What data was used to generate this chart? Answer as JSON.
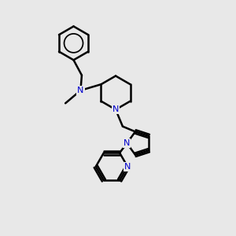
{
  "background_color": "#e8e8e8",
  "bond_color": "#000000",
  "nitrogen_color": "#0000cc",
  "line_width": 1.8,
  "figsize": [
    3.0,
    3.0
  ],
  "dpi": 100,
  "xlim": [
    0,
    10
  ],
  "ylim": [
    0,
    10
  ]
}
